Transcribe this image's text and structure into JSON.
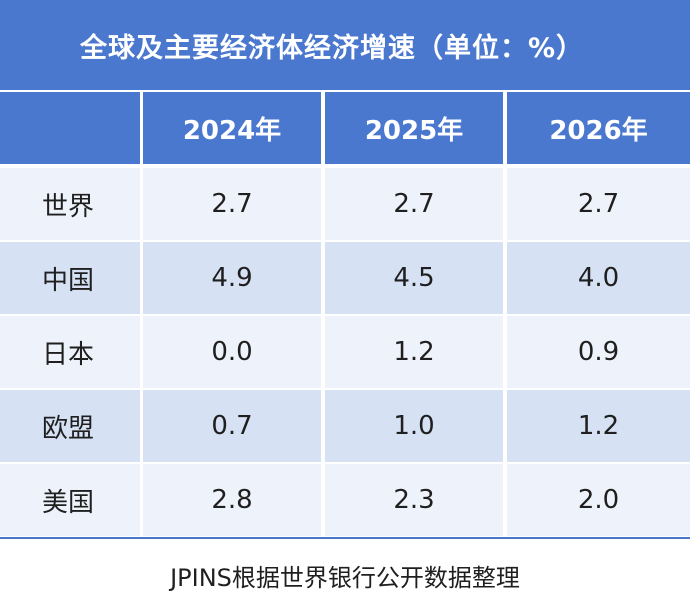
{
  "title": "全球及主要经济体经济增速（单位：%）",
  "header": {
    "corner": "",
    "years": [
      "2024年",
      "2025年",
      "2026年"
    ]
  },
  "rows": [
    {
      "name": "世界",
      "values": [
        "2.7",
        "2.7",
        "2.7"
      ]
    },
    {
      "name": "中国",
      "values": [
        "4.9",
        "4.5",
        "4.0"
      ]
    },
    {
      "name": "日本",
      "values": [
        "0.0",
        "1.2",
        "0.9"
      ]
    },
    {
      "name": "欧盟",
      "values": [
        "0.7",
        "1.0",
        "1.2"
      ]
    },
    {
      "name": "美国",
      "values": [
        "2.8",
        "2.3",
        "2.0"
      ]
    }
  ],
  "footer": "JPINS根据世界银行公开数据整理",
  "colors": {
    "header_blue": "#4a78cf",
    "row_light": "#eef2fa",
    "row_dark": "#d6e1f4"
  }
}
